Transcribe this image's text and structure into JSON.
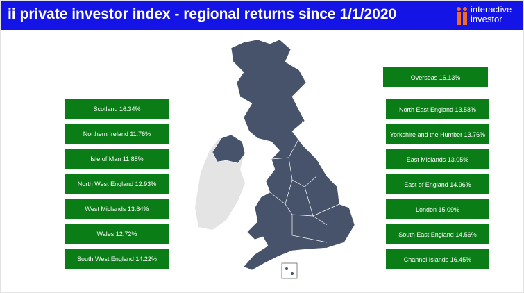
{
  "header": {
    "title": "ii private investor index - regional returns since 1/1/2020",
    "brand": [
      "interactive",
      "investor"
    ]
  },
  "regions_left": [
    "Scotland 16.34%",
    "Northern Ireland 11.76%",
    "Isle of Man 11.88%",
    "North West England 12.93%",
    "West Midlands 13.64%",
    "Wales 12.72%",
    "South West England 14.22%"
  ],
  "regions_right": [
    "Overseas 16.13%",
    "North East England 13.58%",
    "Yorkshire and the Humber 13.76%",
    "East Midlands 13.05%",
    "East of England 14.96%",
    "London 15.09%",
    "South East England 14.56%",
    "Channel Islands 16.45%"
  ]
}
